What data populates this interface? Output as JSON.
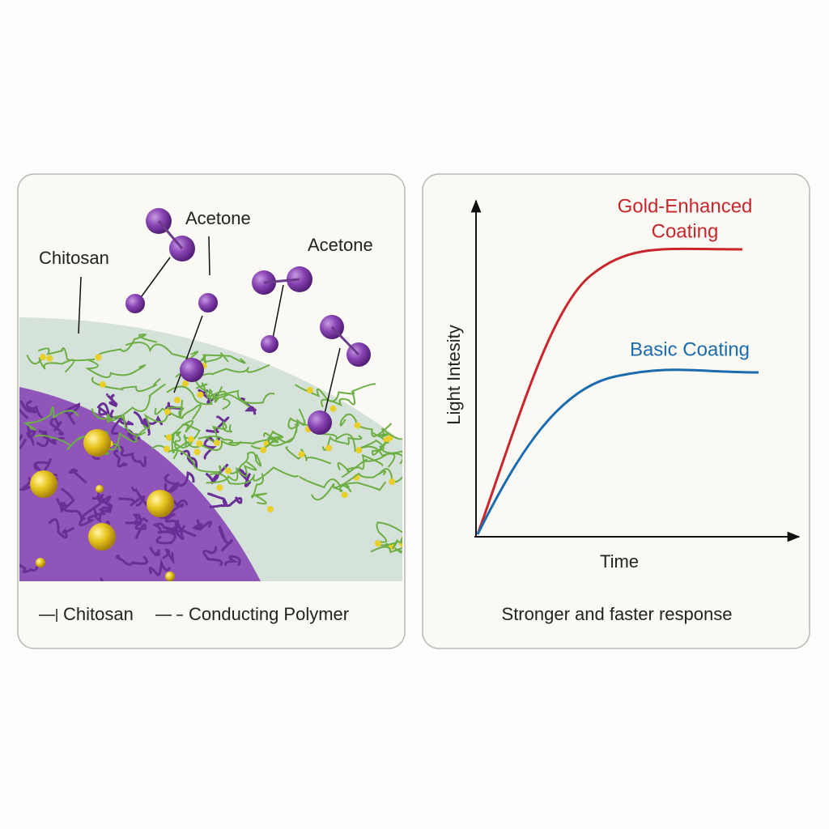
{
  "left_panel": {
    "molecule_labels": [
      "Acetone",
      "Acetone"
    ],
    "layer_label": "Chitosan",
    "legend": [
      "Chitosan",
      "Conducting Polymer"
    ]
  },
  "right_panel": {
    "curves": [
      {
        "label_lines": [
          "Gold-Enhanced",
          "Coating"
        ]
      },
      {
        "label_lines": [
          "Basic Coating"
        ]
      }
    ],
    "y_axis_label": "Light Intesity",
    "x_axis_label": "Time",
    "caption": "Stronger and faster response"
  }
}
